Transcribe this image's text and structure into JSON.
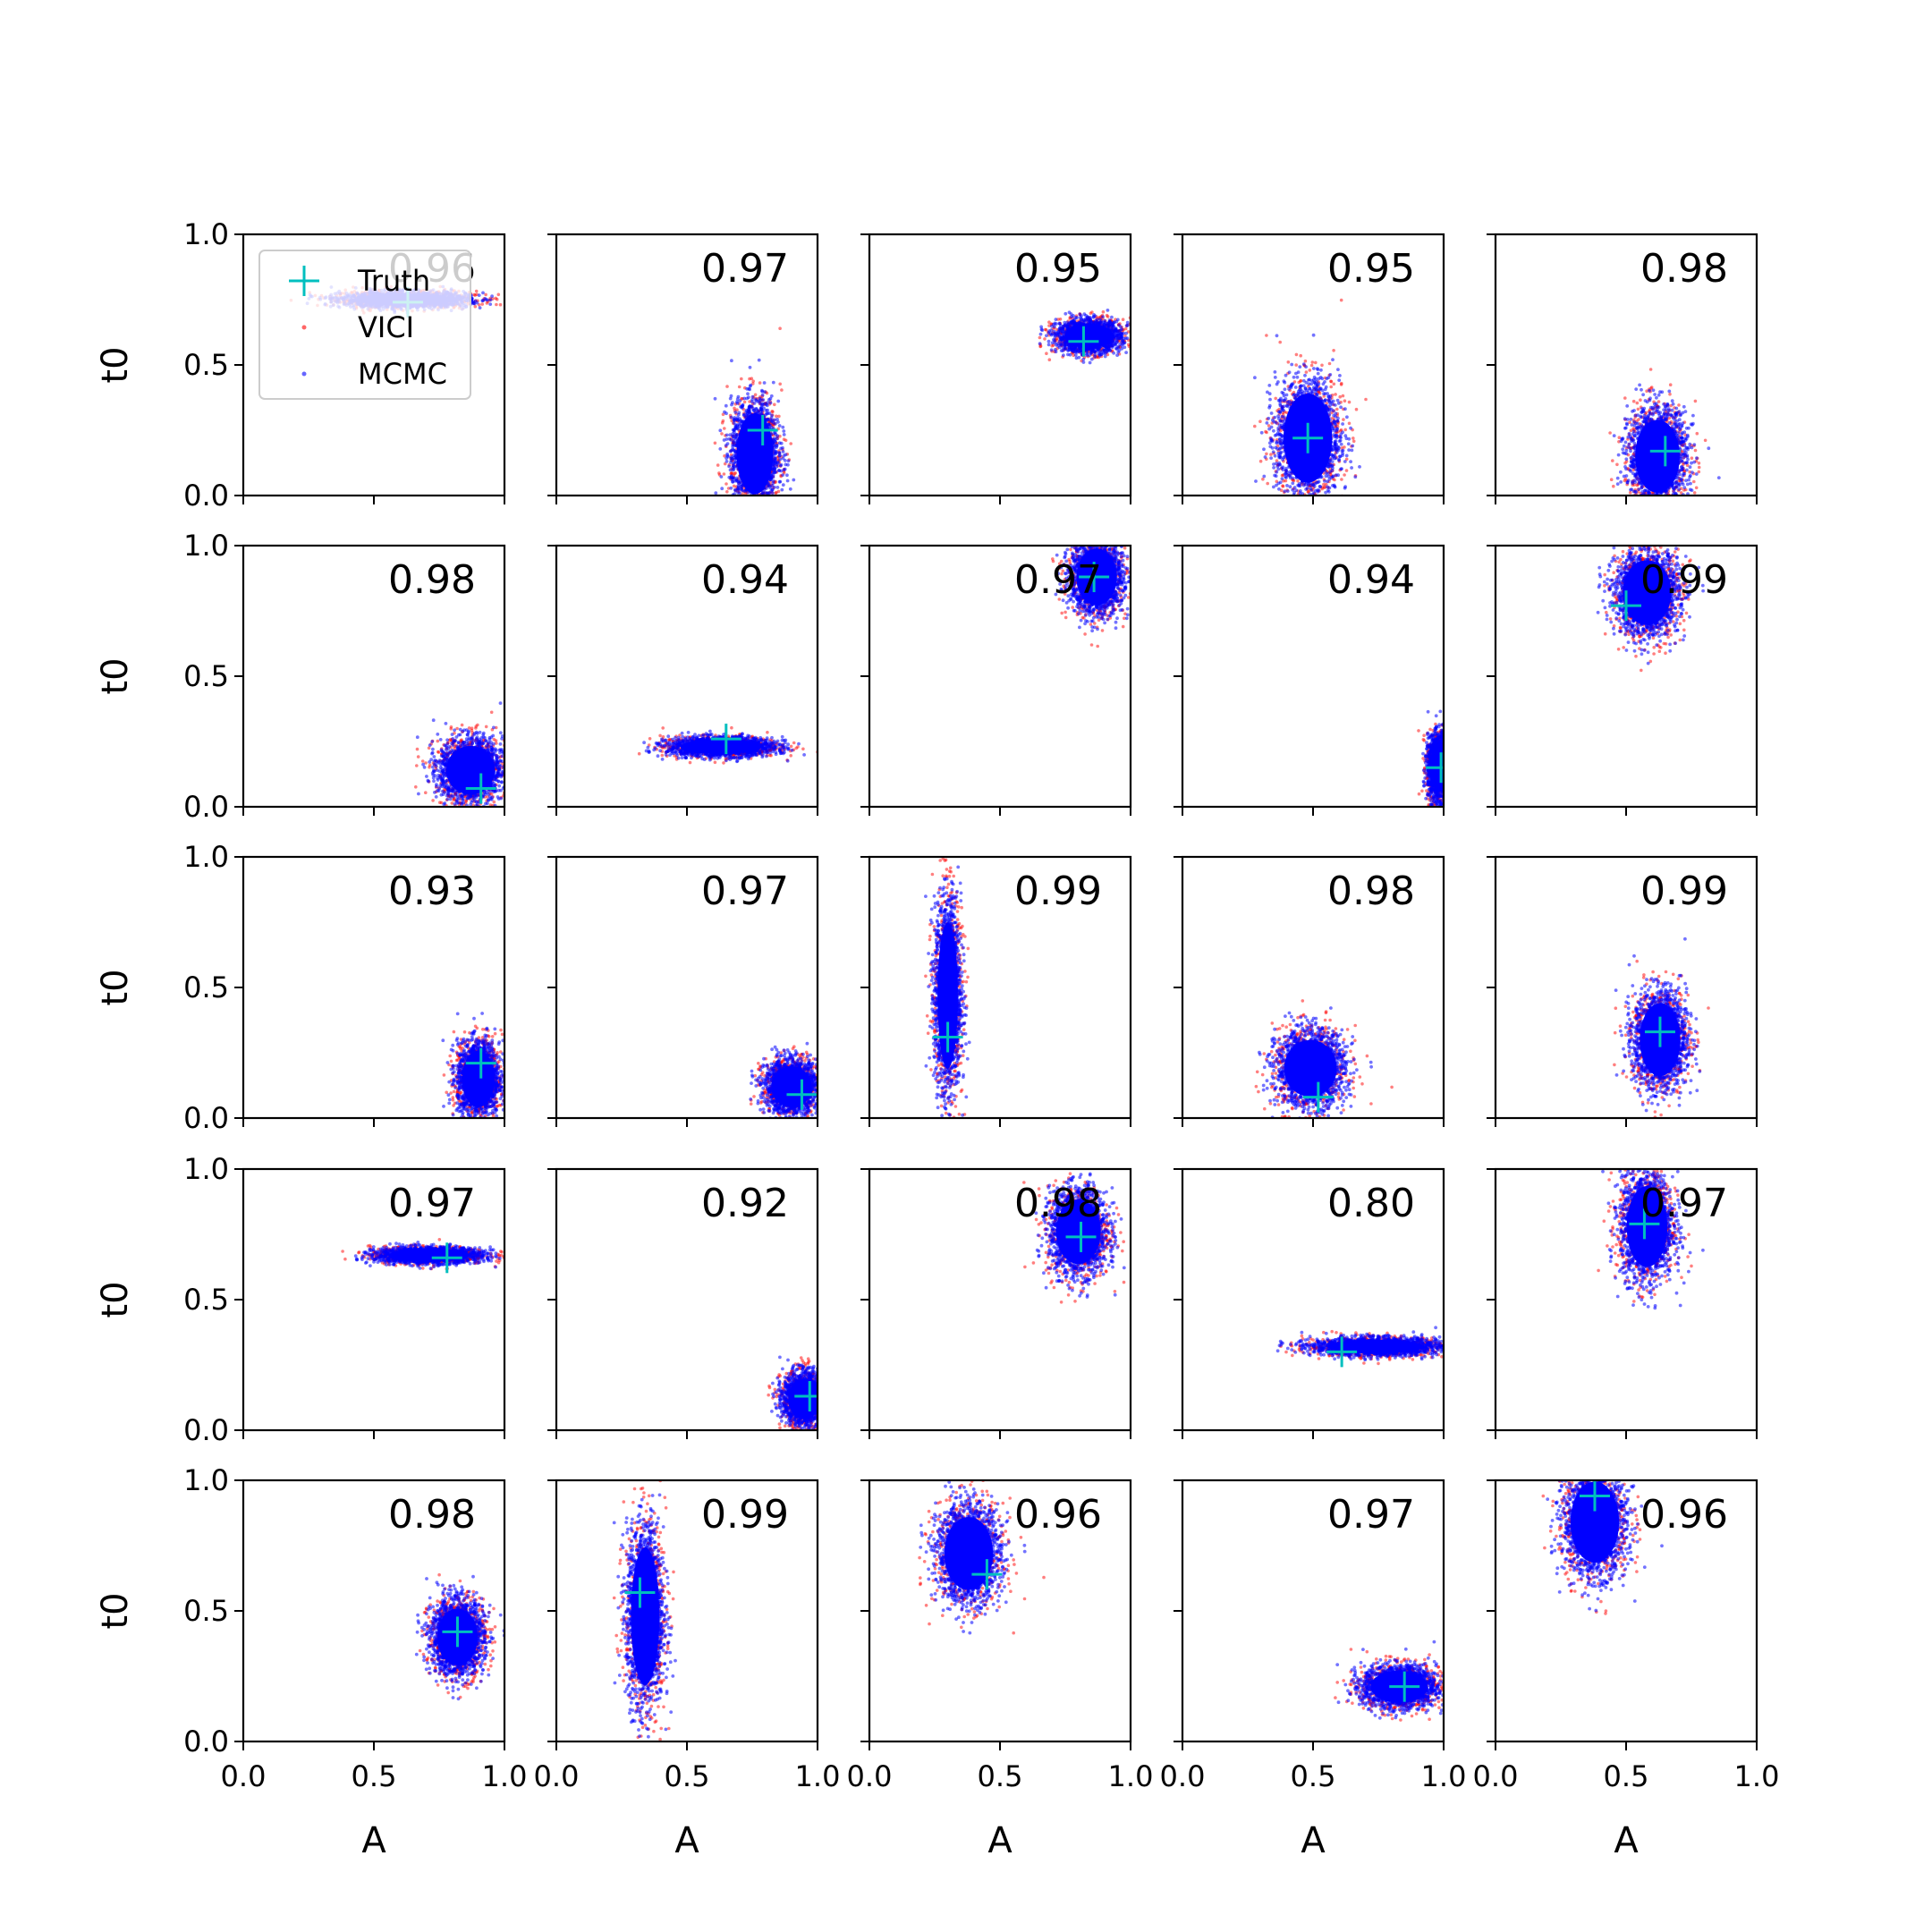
{
  "chart_data": {
    "type": "scatter",
    "layout": "5x5 grid of posterior scatter panels",
    "xlabel": "A",
    "ylabel": "t0",
    "xlim": [
      0,
      1
    ],
    "ylim": [
      0,
      1
    ],
    "x_ticks": [
      "0.0",
      "0.5",
      "1.0"
    ],
    "y_ticks": [
      "0.0",
      "0.5",
      "1.0"
    ],
    "legend": {
      "placement": "upper-left of first panel",
      "entries": [
        {
          "label": "Truth",
          "marker": "plus",
          "color": "#00bfbf"
        },
        {
          "label": "VICI",
          "marker": "dot",
          "color": "#ff0000"
        },
        {
          "label": "MCMC",
          "marker": "dot",
          "color": "#0000ff"
        }
      ]
    },
    "panels": [
      {
        "overlap": "0.96",
        "truth": [
          0.63,
          0.74
        ],
        "cloud": {
          "cx": 0.62,
          "cy": 0.75,
          "sx": 0.12,
          "sy": 0.015
        }
      },
      {
        "overlap": "0.97",
        "truth": [
          0.79,
          0.25
        ],
        "cloud": {
          "cx": 0.76,
          "cy": 0.16,
          "sx": 0.045,
          "sy": 0.1
        }
      },
      {
        "overlap": "0.95",
        "truth": [
          0.82,
          0.59
        ],
        "cloud": {
          "cx": 0.84,
          "cy": 0.61,
          "sx": 0.06,
          "sy": 0.03
        }
      },
      {
        "overlap": "0.95",
        "truth": [
          0.48,
          0.22
        ],
        "cloud": {
          "cx": 0.48,
          "cy": 0.22,
          "sx": 0.06,
          "sy": 0.11
        }
      },
      {
        "overlap": "0.98",
        "truth": [
          0.65,
          0.17
        ],
        "cloud": {
          "cx": 0.62,
          "cy": 0.15,
          "sx": 0.055,
          "sy": 0.09
        }
      },
      {
        "overlap": "0.98",
        "truth": [
          0.91,
          0.07
        ],
        "cloud": {
          "cx": 0.87,
          "cy": 0.14,
          "sx": 0.06,
          "sy": 0.06
        }
      },
      {
        "overlap": "0.94",
        "truth": [
          0.65,
          0.26
        ],
        "cloud": {
          "cx": 0.63,
          "cy": 0.23,
          "sx": 0.1,
          "sy": 0.018
        }
      },
      {
        "overlap": "0.97",
        "truth": [
          0.86,
          0.88
        ],
        "cloud": {
          "cx": 0.87,
          "cy": 0.88,
          "sx": 0.05,
          "sy": 0.07
        }
      },
      {
        "overlap": "0.94",
        "truth": [
          0.99,
          0.15
        ],
        "cloud": {
          "cx": 0.98,
          "cy": 0.15,
          "sx": 0.02,
          "sy": 0.06
        }
      },
      {
        "overlap": "0.99",
        "truth": [
          0.5,
          0.77
        ],
        "cloud": {
          "cx": 0.58,
          "cy": 0.82,
          "sx": 0.06,
          "sy": 0.08
        }
      },
      {
        "overlap": "0.93",
        "truth": [
          0.91,
          0.21
        ],
        "cloud": {
          "cx": 0.9,
          "cy": 0.15,
          "sx": 0.04,
          "sy": 0.07
        }
      },
      {
        "overlap": "0.97",
        "truth": [
          0.94,
          0.09
        ],
        "cloud": {
          "cx": 0.9,
          "cy": 0.12,
          "sx": 0.05,
          "sy": 0.05
        }
      },
      {
        "overlap": "0.99",
        "truth": [
          0.3,
          0.31
        ],
        "cloud": {
          "cx": 0.3,
          "cy": 0.47,
          "sx": 0.025,
          "sy": 0.18
        }
      },
      {
        "overlap": "0.98",
        "truth": [
          0.52,
          0.08
        ],
        "cloud": {
          "cx": 0.49,
          "cy": 0.19,
          "sx": 0.065,
          "sy": 0.07
        }
      },
      {
        "overlap": "0.99",
        "truth": [
          0.63,
          0.33
        ],
        "cloud": {
          "cx": 0.63,
          "cy": 0.3,
          "sx": 0.05,
          "sy": 0.09
        }
      },
      {
        "overlap": "0.97",
        "truth": [
          0.78,
          0.66
        ],
        "cloud": {
          "cx": 0.71,
          "cy": 0.67,
          "sx": 0.1,
          "sy": 0.015
        }
      },
      {
        "overlap": "0.92",
        "truth": [
          0.97,
          0.13
        ],
        "cloud": {
          "cx": 0.95,
          "cy": 0.12,
          "sx": 0.04,
          "sy": 0.05
        }
      },
      {
        "overlap": "0.98",
        "truth": [
          0.81,
          0.74
        ],
        "cloud": {
          "cx": 0.8,
          "cy": 0.76,
          "sx": 0.055,
          "sy": 0.08
        }
      },
      {
        "overlap": "0.80",
        "truth": [
          0.61,
          0.3
        ],
        "cloud": {
          "cx": 0.74,
          "cy": 0.32,
          "sx": 0.12,
          "sy": 0.017
        }
      },
      {
        "overlap": "0.97",
        "truth": [
          0.57,
          0.79
        ],
        "cloud": {
          "cx": 0.58,
          "cy": 0.78,
          "sx": 0.05,
          "sy": 0.1
        }
      },
      {
        "overlap": "0.98",
        "truth": [
          0.82,
          0.42
        ],
        "cloud": {
          "cx": 0.82,
          "cy": 0.4,
          "sx": 0.05,
          "sy": 0.07
        }
      },
      {
        "overlap": "0.99",
        "truth": [
          0.32,
          0.57
        ],
        "cloud": {
          "cx": 0.34,
          "cy": 0.48,
          "sx": 0.035,
          "sy": 0.17
        }
      },
      {
        "overlap": "0.96",
        "truth": [
          0.45,
          0.64
        ],
        "cloud": {
          "cx": 0.38,
          "cy": 0.72,
          "sx": 0.06,
          "sy": 0.09
        }
      },
      {
        "overlap": "0.97",
        "truth": [
          0.85,
          0.21
        ],
        "cloud": {
          "cx": 0.83,
          "cy": 0.21,
          "sx": 0.07,
          "sy": 0.04
        }
      },
      {
        "overlap": "0.96",
        "truth": [
          0.38,
          0.94
        ],
        "cloud": {
          "cx": 0.38,
          "cy": 0.84,
          "sx": 0.06,
          "sy": 0.1
        }
      }
    ]
  }
}
